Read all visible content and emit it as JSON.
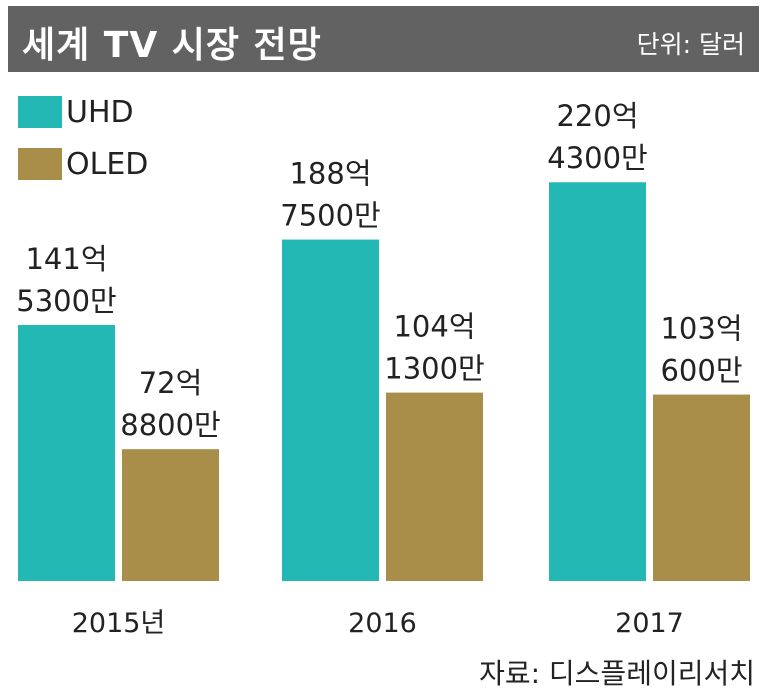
{
  "header": {
    "title": "세계 TV 시장 전망",
    "unit": "단위: 달러"
  },
  "source": "자료: 디스플레이리서치",
  "colors": {
    "header_bg": "#626262",
    "uhd": "#23b8b3",
    "oled": "#a88e48"
  },
  "chart_data": {
    "type": "bar",
    "title": "세계 TV 시장 전망",
    "unit": "단위: 달러",
    "categories": [
      "2015년",
      "2016",
      "2017"
    ],
    "legend_position": "top-left",
    "grid": false,
    "ylim": [
      0,
      24000000000
    ],
    "series": [
      {
        "name": "UHD",
        "color": "#23b8b3",
        "values": [
          14153000000,
          18875000000,
          22043000000
        ],
        "labels": [
          [
            "141억",
            "5300만"
          ],
          [
            "188억",
            "7500만"
          ],
          [
            "220억",
            "4300만"
          ]
        ]
      },
      {
        "name": "OLED",
        "color": "#a88e48",
        "values": [
          7288000000,
          10413000000,
          10306000000
        ],
        "labels": [
          [
            "72억",
            "8800만"
          ],
          [
            "104억",
            "1300만"
          ],
          [
            "103억",
            "600만"
          ]
        ]
      }
    ]
  }
}
